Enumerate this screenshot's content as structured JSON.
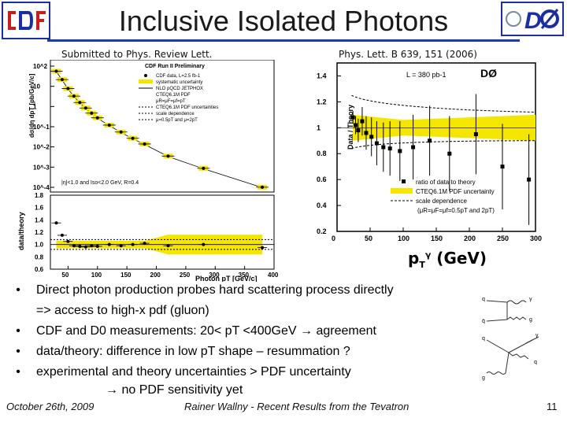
{
  "slide": {
    "title": "Inclusive Isolated Photons",
    "caption_left": "Submitted to Phys. Review Lett.",
    "caption_right": "Phys. Lett. B 639, 151 (2006)",
    "pt_label_main": "p",
    "pt_label_sub": "T",
    "pt_label_sup": "γ",
    "pt_label_unit": " (GeV)",
    "logo_left": "CDF",
    "logo_right": "DØ"
  },
  "bullets": [
    {
      "line1": "Direct photon production probes hard scattering process directly",
      "line2": "=> access to high-x pdf (gluon)"
    },
    {
      "line1": "CDF and D0 measurements: 20< pT <400GeV → agreement"
    },
    {
      "line1": "data/theory: difference in low pT shape – resummation ?"
    },
    {
      "line1": "experimental and theory uncertainties > PDF uncertainty",
      "line2": "→ no PDF sensitivity yet"
    }
  ],
  "footer": {
    "date": "October 26th, 2009",
    "center": "Rainer Wallny - Recent Results from the Tevatron",
    "page": "11"
  },
  "chart_data": [
    {
      "type": "scatter",
      "title": "CDF Run II Preliminary",
      "ylabel": "dσ/dη dpT [pb/GeV/c]",
      "xlabel": "Photon pT [GeV/c]",
      "legend": [
        "CDF data, L=2.5 fb-1",
        "systematic uncertainty",
        "NLO pQCD JETPHOX",
        "CTEQ6.1M PDF",
        "μR=μF=μf=pT",
        "CTEQ6.1M PDF uncertainties",
        "scale dependence",
        "μ=0.5pT and μ=2pT"
      ],
      "annotation": "|η|<1.0 and Iso<2.0 GeV, R=0.4",
      "ylog": true,
      "ylim": [
        0.0001,
        1000
      ],
      "yticks": [
        "10^2",
        "10",
        "1",
        "10^-1",
        "10^-2",
        "10^-3",
        "10^-4"
      ],
      "x": [
        30,
        40,
        50,
        60,
        70,
        80,
        90,
        100,
        120,
        140,
        160,
        180,
        220,
        280,
        380
      ],
      "values": [
        250,
        90,
        30,
        12,
        5.5,
        2.8,
        1.5,
        0.85,
        0.35,
        0.15,
        0.07,
        0.035,
        0.008,
        0.0018,
        0.00018
      ]
    },
    {
      "type": "scatter",
      "ylabel": "data/theory",
      "xlabel": "Photon pT [GeV/c]",
      "xlim": [
        20,
        400
      ],
      "ylim": [
        0.6,
        1.8
      ],
      "xticks": [
        "50",
        "100",
        "150",
        "200",
        "250",
        "300",
        "350",
        "400"
      ],
      "yticks": [
        "1.8",
        "1.6",
        "1.4",
        "1.2",
        "1.0",
        "0.8",
        "0.6"
      ],
      "x": [
        30,
        40,
        50,
        60,
        70,
        80,
        90,
        100,
        120,
        140,
        160,
        180,
        220,
        280,
        380
      ],
      "values": [
        1.35,
        1.15,
        1.05,
        0.98,
        0.97,
        0.96,
        0.98,
        0.97,
        1.0,
        0.98,
        1.0,
        1.02,
        0.98,
        1.0,
        0.95
      ]
    },
    {
      "type": "scatter",
      "title": "DØ",
      "annotation": "L = 380 pb-1",
      "ylabel": "Data / Theory",
      "xlim": [
        0,
        300
      ],
      "ylim": [
        0.2,
        1.5
      ],
      "xticks": [
        "0",
        "50",
        "100",
        "150",
        "200",
        "250",
        "300"
      ],
      "yticks": [
        "1.4",
        "1.2",
        "1",
        "0.8",
        "0.6",
        "0.4",
        "0.2"
      ],
      "legend": [
        "ratio of data to theory",
        "CTEQ6.1M PDF uncertainty",
        "scale dependence",
        "(μR=μF=μf=0.5pT and 2pT)"
      ],
      "x": [
        24,
        28,
        32,
        38,
        44,
        52,
        60,
        70,
        80,
        95,
        115,
        140,
        170,
        210,
        250,
        290
      ],
      "values": [
        1.08,
        1.02,
        0.98,
        1.05,
        0.96,
        0.93,
        0.88,
        0.85,
        0.84,
        0.82,
        0.85,
        0.9,
        0.8,
        0.95,
        0.7,
        0.6
      ]
    }
  ]
}
